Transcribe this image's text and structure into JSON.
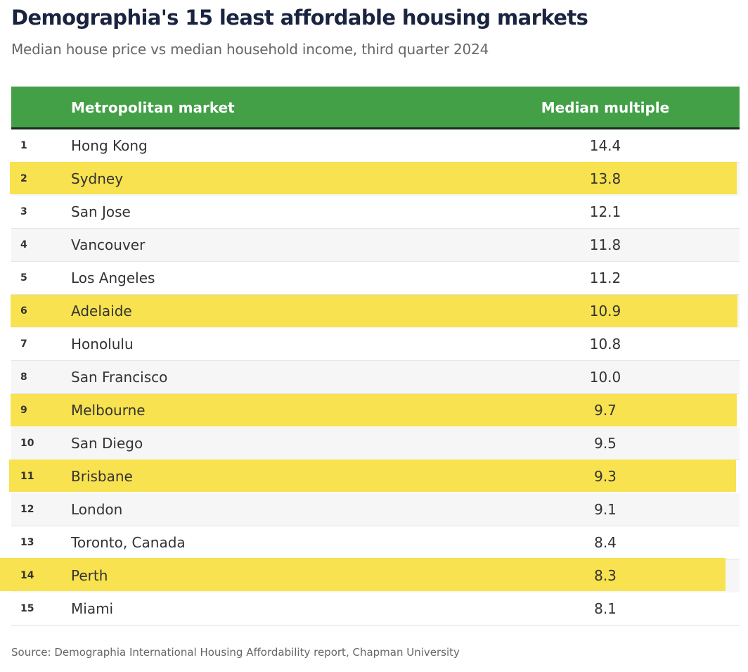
{
  "title": "Demographia's 15 least affordable housing markets",
  "subtitle": "Median house price vs median household income, third quarter 2024",
  "source": "Source: Demographia International Housing Affordability report, Chapman University",
  "colors": {
    "header": "#43a047",
    "highlight": "#f8e24f",
    "title": "#1a2440"
  },
  "chart_data": {
    "type": "table",
    "columns": [
      "",
      "Metropolitan market",
      "Median multiple"
    ],
    "rows": [
      {
        "rank": "1",
        "market": "Hong Kong",
        "multiple": "14.4",
        "highlighted": false
      },
      {
        "rank": "2",
        "market": "Sydney",
        "multiple": "13.8",
        "highlighted": true
      },
      {
        "rank": "3",
        "market": "San Jose",
        "multiple": "12.1",
        "highlighted": false
      },
      {
        "rank": "4",
        "market": "Vancouver",
        "multiple": "11.8",
        "highlighted": false
      },
      {
        "rank": "5",
        "market": "Los Angeles",
        "multiple": "11.2",
        "highlighted": false
      },
      {
        "rank": "6",
        "market": "Adelaide",
        "multiple": "10.9",
        "highlighted": true
      },
      {
        "rank": "7",
        "market": "Honolulu",
        "multiple": "10.8",
        "highlighted": false
      },
      {
        "rank": "8",
        "market": "San Francisco",
        "multiple": "10.0",
        "highlighted": false
      },
      {
        "rank": "9",
        "market": "Melbourne",
        "multiple": "9.7",
        "highlighted": true
      },
      {
        "rank": "10",
        "market": "San Diego",
        "multiple": "9.5",
        "highlighted": false
      },
      {
        "rank": "11",
        "market": "Brisbane",
        "multiple": "9.3",
        "highlighted": true
      },
      {
        "rank": "12",
        "market": "London",
        "multiple": "9.1",
        "highlighted": false
      },
      {
        "rank": "13",
        "market": "Toronto, Canada",
        "multiple": "8.4",
        "highlighted": false
      },
      {
        "rank": "14",
        "market": "Perth",
        "multiple": "8.3",
        "highlighted": true
      },
      {
        "rank": "15",
        "market": "Miami",
        "multiple": "8.1",
        "highlighted": false
      }
    ]
  }
}
